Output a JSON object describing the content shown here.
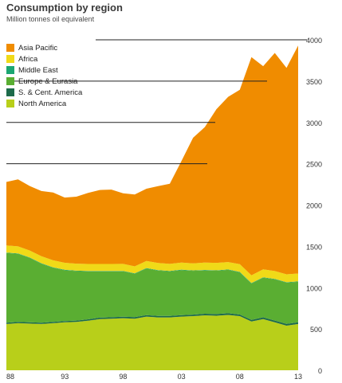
{
  "title": "Consumption by region",
  "subtitle": "Million tonnes oil equivalent",
  "chart_data": {
    "type": "area",
    "stacked": true,
    "title": "Consumption by region",
    "ylabel": "Million tonnes oil equivalent",
    "x": [
      1988,
      1989,
      1990,
      1991,
      1992,
      1993,
      1994,
      1995,
      1996,
      1997,
      1998,
      1999,
      2000,
      2001,
      2002,
      2003,
      2004,
      2005,
      2006,
      2007,
      2008,
      2009,
      2010,
      2011,
      2012,
      2013
    ],
    "x_tick_labels": [
      "88",
      "93",
      "98",
      "03",
      "08",
      "13"
    ],
    "x_tick_values": [
      1988,
      1993,
      1998,
      2003,
      2008,
      2013
    ],
    "ylim": [
      0,
      4000
    ],
    "y_ticks": [
      0,
      500,
      1000,
      1500,
      2000,
      2500,
      3000,
      3500,
      4000
    ],
    "y_axis_side": "right",
    "grid": "partial horizontal lines at 2500, 3000, 3500, 4000",
    "legend_position": "top-left",
    "series": [
      {
        "name": "North America",
        "color": "#b8cf1a",
        "values": [
          560,
          570,
          565,
          560,
          570,
          580,
          585,
          600,
          620,
          625,
          630,
          625,
          650,
          640,
          640,
          650,
          655,
          665,
          660,
          670,
          655,
          590,
          620,
          580,
          540,
          560
        ]
      },
      {
        "name": "S. & Cent. America",
        "color": "#1d6b4b",
        "values": [
          15,
          15,
          15,
          15,
          16,
          16,
          16,
          17,
          17,
          17,
          18,
          18,
          18,
          18,
          18,
          18,
          19,
          19,
          20,
          20,
          20,
          20,
          21,
          21,
          21,
          21
        ]
      },
      {
        "name": "Europe & Eurasia",
        "color": "#5aae32",
        "values": [
          845,
          825,
          780,
          715,
          655,
          615,
          600,
          580,
          560,
          555,
          550,
          525,
          565,
          550,
          540,
          545,
          530,
          525,
          525,
          525,
          510,
          440,
          480,
          500,
          500,
          490
        ]
      },
      {
        "name": "Middle East",
        "color": "#1ba672",
        "values": [
          5,
          5,
          5,
          5,
          5,
          5,
          5,
          5,
          5,
          5,
          5,
          5,
          5,
          5,
          5,
          5,
          5,
          5,
          5,
          5,
          5,
          5,
          5,
          5,
          5,
          5
        ]
      },
      {
        "name": "Africa",
        "color": "#f0da18",
        "values": [
          85,
          85,
          85,
          85,
          85,
          85,
          85,
          85,
          85,
          85,
          85,
          85,
          85,
          85,
          85,
          85,
          85,
          90,
          90,
          90,
          95,
          95,
          95,
          95,
          95,
          95
        ]
      },
      {
        "name": "Asia Pacific",
        "color": "#f08c00",
        "values": [
          770,
          810,
          780,
          790,
          820,
          790,
          810,
          860,
          895,
          900,
          855,
          870,
          875,
          930,
          970,
          1230,
          1520,
          1640,
          1860,
          2000,
          2110,
          2640,
          2460,
          2640,
          2500,
          2760
        ]
      }
    ]
  }
}
